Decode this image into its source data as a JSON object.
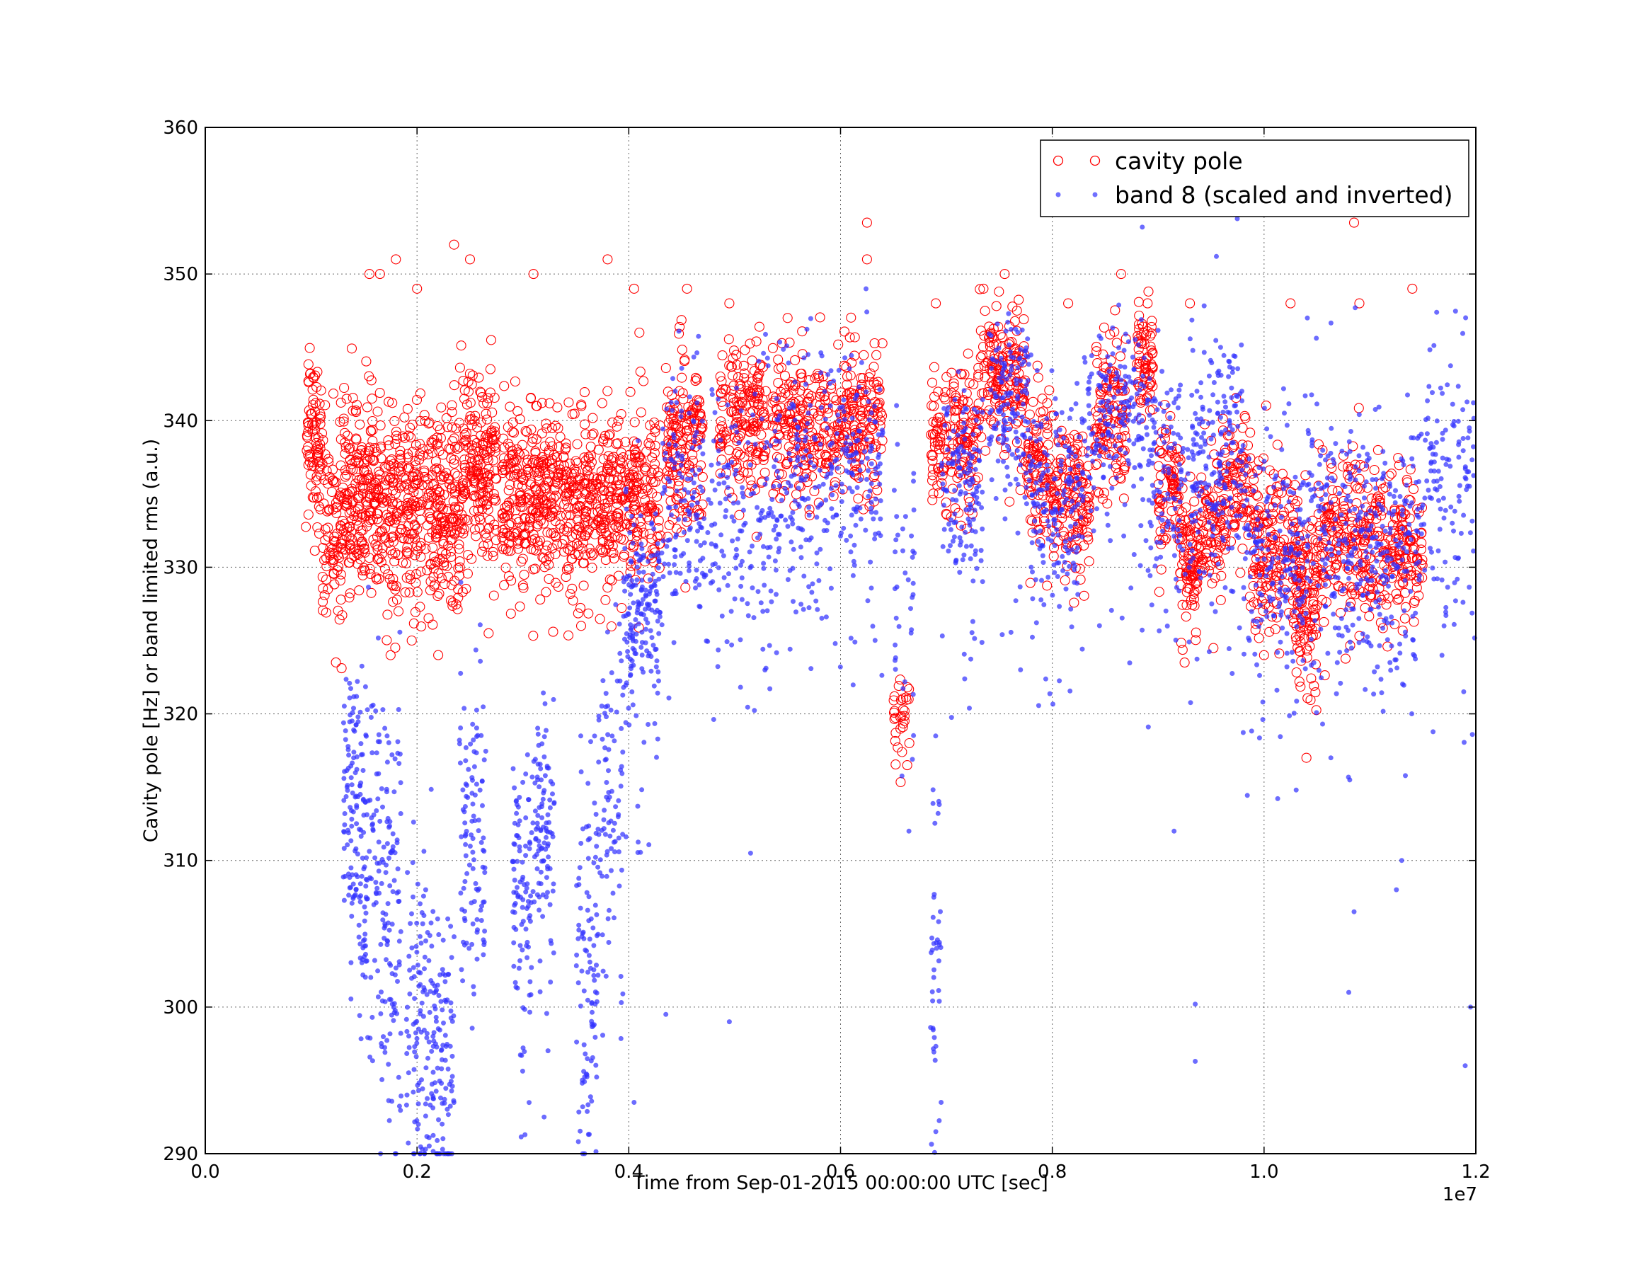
{
  "chart_data": {
    "type": "scatter",
    "xlabel": "Time from Sep-01-2015 00:00:00 UTC [sec]",
    "ylabel": "Cavity pole [Hz] or band limited rms (a.u.)",
    "x_offset_label": "1e7",
    "xlim": [
      0,
      12000000
    ],
    "ylim": [
      290,
      360
    ],
    "x_ticks": [
      0,
      2000000,
      4000000,
      6000000,
      8000000,
      10000000,
      12000000
    ],
    "x_tick_labels": [
      "0.0",
      "0.2",
      "0.4",
      "0.6",
      "0.8",
      "1.0",
      "1.2"
    ],
    "y_ticks": [
      290,
      300,
      310,
      320,
      330,
      340,
      350,
      360
    ],
    "y_tick_labels": [
      "290",
      "300",
      "310",
      "320",
      "330",
      "340",
      "350",
      "360"
    ],
    "grid": true,
    "legend_position": "top-right",
    "series": [
      {
        "name": "cavity pole",
        "marker": "open-circle",
        "color": "#ff0000",
        "segments": [
          {
            "x0": 950000,
            "x1": 1100000,
            "center": 339,
            "spread": 3.0,
            "count": 80
          },
          {
            "x0": 1100000,
            "x1": 1300000,
            "center": 333,
            "spread": 3.5,
            "count": 90
          },
          {
            "x0": 1300000,
            "x1": 1600000,
            "center": 335,
            "spread": 3.5,
            "count": 180
          },
          {
            "x0": 1600000,
            "x1": 2400000,
            "center": 334,
            "spread": 3.5,
            "count": 420
          },
          {
            "x0": 2400000,
            "x1": 2750000,
            "center": 336,
            "spread": 3.5,
            "count": 200
          },
          {
            "x0": 2800000,
            "x1": 3500000,
            "center": 335,
            "spread": 3.0,
            "count": 360
          },
          {
            "x0": 3500000,
            "x1": 3900000,
            "center": 334.5,
            "spread": 3.0,
            "count": 200
          },
          {
            "x0": 3900000,
            "x1": 4300000,
            "center": 335,
            "spread": 3.0,
            "count": 170
          },
          {
            "x0": 4350000,
            "x1": 4700000,
            "center": 338.5,
            "spread": 3.0,
            "count": 160
          },
          {
            "x0": 4850000,
            "x1": 5300000,
            "center": 340,
            "spread": 2.5,
            "count": 180
          },
          {
            "x0": 5350000,
            "x1": 6000000,
            "center": 339.5,
            "spread": 2.5,
            "count": 220
          },
          {
            "x0": 6000000,
            "x1": 6400000,
            "center": 340.5,
            "spread": 2.5,
            "count": 150
          },
          {
            "x0": 6500000,
            "x1": 6650000,
            "center": 320,
            "spread": 1.5,
            "count": 30
          },
          {
            "x0": 6850000,
            "x1": 7300000,
            "center": 338.5,
            "spread": 2.5,
            "count": 160
          },
          {
            "x0": 7300000,
            "x1": 7750000,
            "center": 343,
            "spread": 2.5,
            "count": 170
          },
          {
            "x0": 7750000,
            "x1": 8000000,
            "center": 337,
            "spread": 2.5,
            "count": 100
          },
          {
            "x0": 8000000,
            "x1": 8350000,
            "center": 334.5,
            "spread": 2.5,
            "count": 140
          },
          {
            "x0": 8400000,
            "x1": 8700000,
            "center": 340.5,
            "spread": 2.5,
            "count": 120
          },
          {
            "x0": 8800000,
            "x1": 8950000,
            "center": 343.5,
            "spread": 2.0,
            "count": 70
          },
          {
            "x0": 9000000,
            "x1": 9200000,
            "center": 335.5,
            "spread": 2.5,
            "count": 80
          },
          {
            "x0": 9200000,
            "x1": 9400000,
            "center": 331,
            "spread": 2.5,
            "count": 100
          },
          {
            "x0": 9400000,
            "x1": 9600000,
            "center": 333,
            "spread": 2.5,
            "count": 80
          },
          {
            "x0": 9600000,
            "x1": 9850000,
            "center": 336,
            "spread": 2.5,
            "count": 90
          },
          {
            "x0": 9850000,
            "x1": 10300000,
            "center": 331.5,
            "spread": 3.0,
            "count": 180
          },
          {
            "x0": 10300000,
            "x1": 10500000,
            "center": 328,
            "spread": 3.0,
            "count": 120
          },
          {
            "x0": 10500000,
            "x1": 11100000,
            "center": 332,
            "spread": 3.0,
            "count": 220
          },
          {
            "x0": 11100000,
            "x1": 11500000,
            "center": 331.5,
            "spread": 2.5,
            "count": 140
          }
        ],
        "outliers": [
          [
            1550000,
            350
          ],
          [
            1650000,
            350
          ],
          [
            1800000,
            351
          ],
          [
            2000000,
            349
          ],
          [
            2350000,
            352
          ],
          [
            2500000,
            351
          ],
          [
            3100000,
            350
          ],
          [
            3800000,
            351
          ],
          [
            4050000,
            349
          ],
          [
            4550000,
            349
          ],
          [
            4950000,
            348
          ],
          [
            5500000,
            347
          ],
          [
            6250000,
            353.5
          ],
          [
            6250000,
            351
          ],
          [
            6900000,
            348
          ],
          [
            7350000,
            349
          ],
          [
            7550000,
            350
          ],
          [
            8150000,
            348
          ],
          [
            8650000,
            350
          ],
          [
            8900000,
            348
          ],
          [
            9300000,
            348
          ],
          [
            10250000,
            348
          ],
          [
            10850000,
            353.5
          ],
          [
            11400000,
            349
          ],
          [
            10900000,
            348
          ],
          [
            1750000,
            324
          ],
          [
            1950000,
            325
          ],
          [
            3550000,
            326
          ],
          [
            10400000,
            317
          ],
          [
            6630000,
            316.5
          ],
          [
            9250000,
            323.5
          ],
          [
            10000000,
            324
          ],
          [
            6650000,
            318
          ],
          [
            4100000,
            346
          ],
          [
            2700000,
            345.5
          ]
        ]
      },
      {
        "name": "band 8 (scaled and inverted)",
        "marker": "filled-dot",
        "color": "#3333ff",
        "segments": [
          {
            "x0": 1300000,
            "x1": 1450000,
            "center": 315,
            "spread": 4.5,
            "count": 90
          },
          {
            "x0": 1450000,
            "x1": 1650000,
            "center": 310,
            "spread": 7.0,
            "count": 110
          },
          {
            "x0": 1650000,
            "x1": 1850000,
            "center": 308,
            "spread": 8.0,
            "count": 110
          },
          {
            "x0": 1900000,
            "x1": 2150000,
            "center": 300,
            "spread": 6.0,
            "count": 110
          },
          {
            "x0": 2150000,
            "x1": 2350000,
            "center": 297,
            "spread": 5.0,
            "count": 100
          },
          {
            "x0": 2400000,
            "x1": 2650000,
            "center": 312,
            "spread": 6.0,
            "count": 110
          },
          {
            "x0": 2900000,
            "x1": 3100000,
            "center": 308,
            "spread": 5.0,
            "count": 100
          },
          {
            "x0": 3100000,
            "x1": 3300000,
            "center": 313,
            "spread": 4.0,
            "count": 100
          },
          {
            "x0": 3500000,
            "x1": 3700000,
            "center": 302,
            "spread": 7.0,
            "count": 100
          },
          {
            "x0": 3700000,
            "x1": 3950000,
            "center": 315,
            "spread": 6.0,
            "count": 90
          },
          {
            "x0": 3950000,
            "x1": 4300000,
            "center": 327,
            "spread": 3.5,
            "count": 180
          },
          {
            "x0": 4300000,
            "x1": 4700000,
            "center": 335,
            "spread": 4.0,
            "count": 130
          },
          {
            "x0": 4700000,
            "x1": 5300000,
            "center": 334,
            "spread": 5.0,
            "count": 140
          },
          {
            "x0": 5300000,
            "x1": 6000000,
            "center": 336,
            "spread": 4.5,
            "count": 200
          },
          {
            "x0": 6000000,
            "x1": 6400000,
            "center": 337,
            "spread": 4.0,
            "count": 120
          },
          {
            "x0": 6500000,
            "x1": 6700000,
            "center": 328,
            "spread": 6.0,
            "count": 40
          },
          {
            "x0": 6850000,
            "x1": 6950000,
            "center": 302,
            "spread": 6.0,
            "count": 40
          },
          {
            "x0": 6950000,
            "x1": 7350000,
            "center": 336,
            "spread": 3.5,
            "count": 150
          },
          {
            "x0": 7400000,
            "x1": 7800000,
            "center": 341,
            "spread": 3.0,
            "count": 150
          },
          {
            "x0": 7800000,
            "x1": 8300000,
            "center": 335,
            "spread": 3.5,
            "count": 180
          },
          {
            "x0": 8300000,
            "x1": 8900000,
            "center": 340,
            "spread": 3.5,
            "count": 180
          },
          {
            "x0": 8900000,
            "x1": 9400000,
            "center": 336,
            "spread": 4.5,
            "count": 160
          },
          {
            "x0": 9400000,
            "x1": 9800000,
            "center": 338,
            "spread": 5.0,
            "count": 160
          },
          {
            "x0": 9800000,
            "x1": 10400000,
            "center": 331,
            "spread": 4.0,
            "count": 200
          },
          {
            "x0": 10400000,
            "x1": 11000000,
            "center": 332,
            "spread": 5.0,
            "count": 200
          },
          {
            "x0": 11000000,
            "x1": 11500000,
            "center": 331,
            "spread": 5.0,
            "count": 160
          },
          {
            "x0": 11500000,
            "x1": 12000000,
            "center": 335,
            "spread": 5.5,
            "count": 130
          }
        ],
        "outliers": [
          [
            8850000,
            353.2
          ],
          [
            9550000,
            351.2
          ],
          [
            10800000,
            301
          ],
          [
            10850000,
            306.5
          ],
          [
            11950000,
            300
          ],
          [
            11900000,
            296
          ],
          [
            9350000,
            300.2
          ],
          [
            9350000,
            296.3
          ],
          [
            4950000,
            299
          ],
          [
            6900000,
            291.5
          ],
          [
            6950000,
            293.5
          ],
          [
            4050000,
            293.5
          ],
          [
            5150000,
            310.5
          ],
          [
            4350000,
            299.5
          ],
          [
            2050000,
            290.3
          ],
          [
            3200000,
            292.5
          ],
          [
            11300000,
            310
          ],
          [
            11250000,
            308
          ],
          [
            9150000,
            312
          ],
          [
            7700000,
            323
          ]
        ]
      }
    ]
  }
}
